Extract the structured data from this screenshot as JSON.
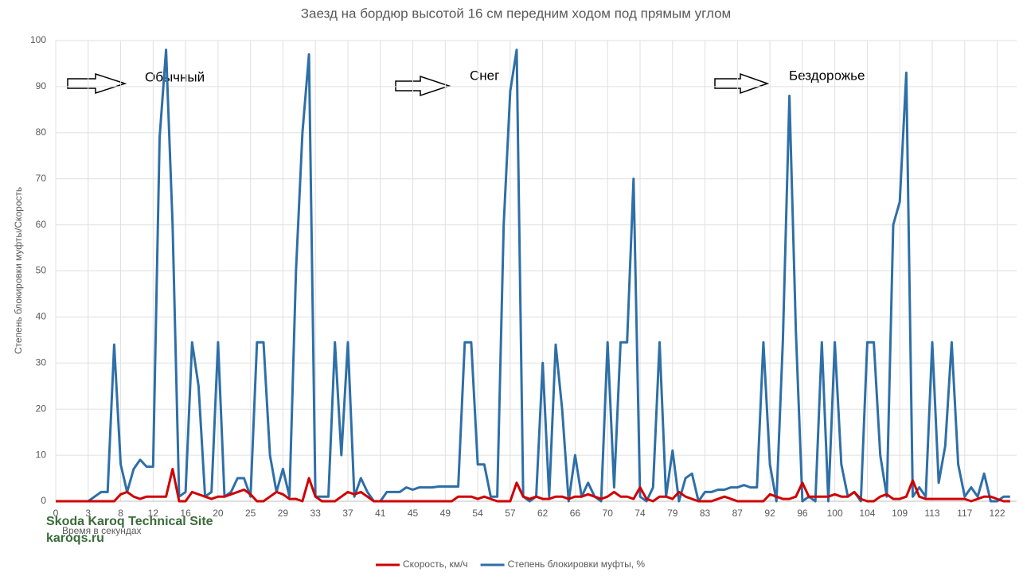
{
  "chart_data": {
    "type": "line",
    "title": "Заезд на бордюр высотой 16 см передним ходом под прямым углом",
    "x_label": "Время в секундах",
    "y_label": "Степень блокировки муфты/Скорость",
    "annotations": [
      "Обычный",
      "Снег",
      "Бездорожье"
    ],
    "watermark": [
      "Skoda Karoq Technical Site",
      "karoqs.ru"
    ],
    "categories": [
      "0",
      null,
      null,
      null,
      null,
      "3",
      null,
      null,
      null,
      null,
      "8",
      null,
      null,
      null,
      null,
      "12",
      null,
      null,
      null,
      null,
      "16",
      null,
      null,
      null,
      null,
      "20",
      null,
      null,
      null,
      null,
      "25",
      null,
      null,
      null,
      null,
      "29",
      null,
      null,
      null,
      null,
      "33",
      null,
      null,
      null,
      null,
      "37",
      null,
      null,
      null,
      null,
      "41",
      null,
      null,
      null,
      null,
      "45",
      null,
      null,
      null,
      null,
      "49",
      null,
      null,
      null,
      null,
      "54",
      null,
      null,
      null,
      null,
      "57",
      null,
      null,
      null,
      null,
      "62",
      null,
      null,
      null,
      null,
      "66",
      null,
      null,
      null,
      null,
      "70",
      null,
      null,
      null,
      null,
      "74",
      null,
      null,
      null,
      null,
      "79",
      null,
      null,
      null,
      null,
      "83",
      null,
      null,
      null,
      null,
      "87",
      null,
      null,
      null,
      null,
      "92",
      null,
      null,
      null,
      null,
      "96",
      null,
      null,
      null,
      null,
      "100",
      null,
      null,
      null,
      null,
      "104",
      null,
      null,
      null,
      null,
      "109",
      null,
      null,
      null,
      null,
      "113",
      null,
      null,
      null,
      null,
      "117",
      null,
      null,
      null,
      null,
      "122",
      null,
      null
    ],
    "series": [
      {
        "name": "Скорость, км/ч",
        "color": "#d00000",
        "values": [
          0,
          0,
          0,
          0,
          0,
          0,
          0,
          0,
          0,
          0,
          1.5,
          2,
          1,
          0.5,
          1,
          1,
          1,
          1,
          7,
          0,
          0,
          2,
          1.5,
          1,
          0.5,
          1,
          1,
          1.5,
          2,
          2.5,
          1.5,
          0,
          0,
          1,
          2,
          1.5,
          0.5,
          0.5,
          0,
          5,
          1,
          0,
          0,
          0,
          1,
          2,
          1.5,
          2,
          1,
          0,
          0,
          0,
          0,
          0,
          0,
          0,
          0,
          0,
          0,
          0,
          0,
          0,
          1,
          1,
          1,
          0.5,
          1,
          0.5,
          0,
          0,
          0,
          4,
          1,
          0.5,
          1,
          0.5,
          0.5,
          1,
          1,
          0.5,
          1,
          1,
          1.5,
          1,
          0.5,
          1,
          2,
          1,
          1,
          0.5,
          3,
          0.5,
          0,
          1,
          1,
          0.5,
          2,
          1,
          0.5,
          0,
          0,
          0,
          0.5,
          1,
          0.5,
          0,
          0,
          0,
          0,
          0,
          1.5,
          1,
          0.5,
          0.5,
          1,
          4,
          1,
          1,
          1,
          1,
          1.5,
          1,
          1,
          2,
          0.5,
          0,
          0,
          1,
          1.5,
          0.5,
          0.5,
          1,
          4.5,
          1,
          0.5,
          0.5,
          0.5,
          0.5,
          0.5,
          0.5,
          0.5,
          0,
          0.5,
          1,
          1,
          0.5,
          0,
          0
        ]
      },
      {
        "name": "Степень блокировки муфты, %",
        "color": "#2e6fa7",
        "values": [
          0,
          0,
          0,
          0,
          0,
          0,
          1,
          2,
          2,
          34,
          8,
          2,
          7,
          9,
          7.5,
          7.5,
          79,
          98,
          60,
          1,
          2,
          34.5,
          25,
          1,
          2,
          34.5,
          1,
          2,
          5,
          5,
          1,
          34.5,
          34.5,
          10,
          2,
          7,
          1,
          50,
          80,
          97,
          1,
          1,
          1,
          34.5,
          10,
          34.5,
          1,
          5,
          2,
          0,
          0,
          2,
          2,
          2,
          3,
          2.5,
          3,
          3,
          3,
          3.2,
          3.2,
          3.2,
          3.2,
          34.5,
          34.5,
          8,
          8,
          1,
          1,
          60,
          89,
          98,
          1,
          0,
          1,
          30,
          1,
          34,
          20,
          0,
          10,
          1,
          4,
          1,
          0,
          34.5,
          3,
          34.5,
          34.5,
          70,
          1,
          0,
          3,
          34.5,
          1,
          11,
          0,
          5,
          6,
          0,
          2,
          2,
          2.5,
          2.5,
          3,
          3,
          3.5,
          3,
          3,
          34.5,
          8,
          0,
          35,
          88,
          37,
          0,
          1,
          0,
          34.5,
          0,
          34.5,
          8,
          1,
          2,
          0,
          34.5,
          34.5,
          10,
          1,
          60,
          65,
          93,
          1,
          3,
          1,
          34.5,
          4,
          12,
          34.5,
          8,
          1,
          3,
          1,
          6,
          0,
          0,
          1,
          1
        ]
      }
    ],
    "ylim": [
      0,
      100
    ],
    "yticks": [
      0,
      10,
      20,
      30,
      40,
      50,
      60,
      70,
      80,
      90,
      100
    ],
    "grid": true,
    "legend": "bottom"
  }
}
